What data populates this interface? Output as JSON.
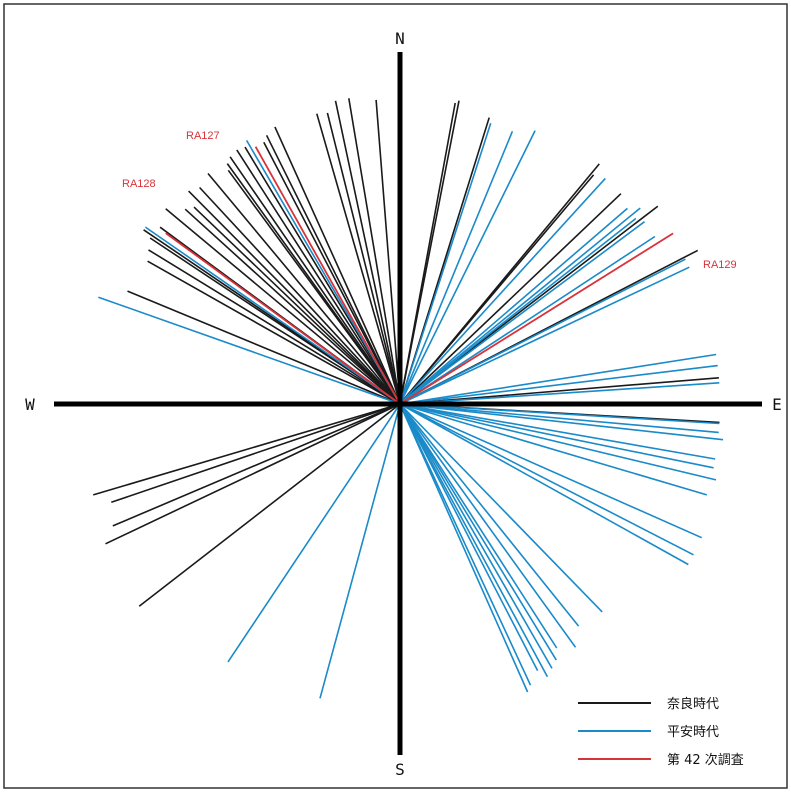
{
  "compass": {
    "north": "N",
    "south": "S",
    "east": "E",
    "west": "W"
  },
  "colors": {
    "nara": "#1a1a1a",
    "heian": "#1a8ac9",
    "survey42": "#d9333a",
    "axis": "#000000",
    "frame": "#333333"
  },
  "labels": [
    {
      "id": "RA127",
      "text": "RA127",
      "series": "survey42"
    },
    {
      "id": "RA128",
      "text": "RA128",
      "series": "survey42"
    },
    {
      "id": "RA129",
      "text": "RA129",
      "series": "survey42"
    }
  ],
  "legend": [
    {
      "key": "nara",
      "label": "奈良時代"
    },
    {
      "key": "heian",
      "label": "平安時代"
    },
    {
      "key": "survey42",
      "label": "第 42 次調査"
    }
  ],
  "rays": {
    "nara": [
      -115.4,
      -113.0,
      -108.8,
      -106.5,
      -67.5,
      -60.5,
      -58.5,
      -56.4,
      -55.8,
      -53.6,
      -50.2,
      -47.8,
      -46.3,
      -44.8,
      -42.8,
      -39.8,
      -36.3,
      -35.7,
      -34.5,
      -32.7,
      -31.1,
      -27.5,
      -26.4,
      -24.3,
      -16.0,
      -14.0,
      -12.0,
      -9.5,
      -4.5,
      11.0,
      10.4,
      17.3,
      39.7,
      40.2,
      46.4,
      62.7,
      85.3,
      93.3,
      52.5,
      -127.8
    ],
    "heian": [
      -70.5,
      -55.2,
      -30.2,
      17.9,
      22.4,
      26.3,
      42.3,
      49.3,
      50.8,
      51.8,
      53.3,
      56.7,
      63.1,
      64.7,
      81.1,
      83.1,
      86.2,
      93.5,
      95.1,
      96.3,
      99.9,
      101.5,
      103.5,
      106.5,
      113.9,
      117.2,
      119.1,
      135.8,
      141.2,
      144.2,
      147.3,
      148.6,
      150.1,
      151.6,
      152.7,
      155.1,
      156.1,
      -164.8,
      -146.3
    ],
    "survey42": [
      -53.9,
      -29.3,
      58.0
    ]
  },
  "ray_lengths": {
    "nara": [
      326,
      312,
      305,
      320,
      295,
      290,
      295,
      300,
      310,
      298,
      305,
      290,
      285,
      300,
      295,
      300,
      290,
      296,
      300,
      302,
      300,
      295,
      300,
      304,
      302,
      300,
      310,
      310,
      305,
      309,
      306,
      300,
      312,
      300,
      305,
      335,
      320,
      320,
      325,
      330
    ],
    "heian": [
      320,
      310,
      305,
      295,
      295,
      305,
      305,
      300,
      310,
      300,
      305,
      305,
      320,
      320,
      320,
      320,
      320,
      320,
      320,
      325,
      320,
      320,
      325,
      320,
      330,
      330,
      330,
      290,
      285,
      300,
      290,
      300,
      305,
      310,
      300,
      310,
      315,
      305,
      310
    ],
    "survey42": [
      290,
      295,
      322
    ]
  }
}
